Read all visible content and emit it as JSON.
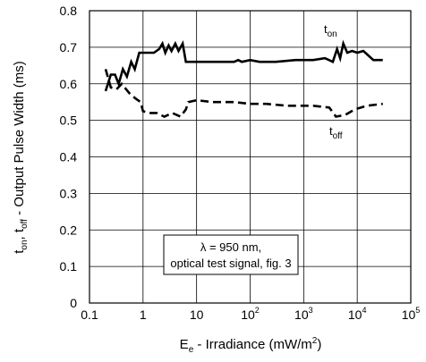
{
  "chart_data": {
    "type": "line",
    "x_scale": "log",
    "xlim": [
      0.1,
      100000
    ],
    "ylim": [
      0,
      0.8
    ],
    "grid": true,
    "xlabel": {
      "main": "E",
      "sub": "e",
      "rest": " - Irradiance (mW/m",
      "sup": "2",
      "end": ")"
    },
    "ylabel": {
      "p1": "t",
      "s1": "on",
      "p2": ", t",
      "s2": "off",
      "p3": " - Output Pulse Width (ms)"
    },
    "x_tick_labels": [
      {
        "base": "0.1",
        "exp": ""
      },
      {
        "base": "1",
        "exp": ""
      },
      {
        "base": "10",
        "exp": ""
      },
      {
        "base": "10",
        "exp": "2"
      },
      {
        "base": "10",
        "exp": "3"
      },
      {
        "base": "10",
        "exp": "4"
      },
      {
        "base": "10",
        "exp": "5"
      }
    ],
    "y_tick_labels": [
      "0",
      "0.1",
      "0.2",
      "0.3",
      "0.4",
      "0.5",
      "0.6",
      "0.7",
      "0.8"
    ],
    "annotation": {
      "line1": "λ = 950 nm,",
      "line2": "optical test signal, fig. 3"
    },
    "series": [
      {
        "label_main": "t",
        "label_sub": "on",
        "style": "solid",
        "points": [
          [
            0.2,
            0.58
          ],
          [
            0.25,
            0.625
          ],
          [
            0.3,
            0.625
          ],
          [
            0.35,
            0.6
          ],
          [
            0.42,
            0.64
          ],
          [
            0.5,
            0.62
          ],
          [
            0.6,
            0.66
          ],
          [
            0.7,
            0.64
          ],
          [
            0.85,
            0.685
          ],
          [
            1.0,
            0.685
          ],
          [
            1.3,
            0.685
          ],
          [
            1.6,
            0.685
          ],
          [
            2.0,
            0.695
          ],
          [
            2.3,
            0.71
          ],
          [
            2.6,
            0.685
          ],
          [
            3.0,
            0.705
          ],
          [
            3.4,
            0.69
          ],
          [
            4.0,
            0.71
          ],
          [
            4.6,
            0.69
          ],
          [
            5.5,
            0.71
          ],
          [
            6.3,
            0.66
          ],
          [
            8,
            0.66
          ],
          [
            12,
            0.66
          ],
          [
            20,
            0.66
          ],
          [
            30,
            0.66
          ],
          [
            50,
            0.66
          ],
          [
            60,
            0.665
          ],
          [
            70,
            0.66
          ],
          [
            100,
            0.665
          ],
          [
            150,
            0.66
          ],
          [
            300,
            0.66
          ],
          [
            700,
            0.665
          ],
          [
            1500,
            0.665
          ],
          [
            2500,
            0.67
          ],
          [
            3500,
            0.66
          ],
          [
            4200,
            0.695
          ],
          [
            4800,
            0.67
          ],
          [
            5500,
            0.71
          ],
          [
            6500,
            0.685
          ],
          [
            8000,
            0.69
          ],
          [
            10000,
            0.685
          ],
          [
            13000,
            0.69
          ],
          [
            20000,
            0.665
          ],
          [
            30000,
            0.665
          ]
        ]
      },
      {
        "label_main": "t",
        "label_sub": "off",
        "style": "dashed",
        "points": [
          [
            0.2,
            0.64
          ],
          [
            0.25,
            0.59
          ],
          [
            0.32,
            0.585
          ],
          [
            0.4,
            0.6
          ],
          [
            0.55,
            0.575
          ],
          [
            0.72,
            0.56
          ],
          [
            0.9,
            0.55
          ],
          [
            1.0,
            0.525
          ],
          [
            1.3,
            0.52
          ],
          [
            1.8,
            0.52
          ],
          [
            2.5,
            0.51
          ],
          [
            3.5,
            0.52
          ],
          [
            5,
            0.51
          ],
          [
            6.3,
            0.53
          ],
          [
            7,
            0.55
          ],
          [
            10,
            0.555
          ],
          [
            20,
            0.55
          ],
          [
            50,
            0.55
          ],
          [
            100,
            0.545
          ],
          [
            200,
            0.545
          ],
          [
            500,
            0.54
          ],
          [
            1500,
            0.54
          ],
          [
            3000,
            0.535
          ],
          [
            4000,
            0.51
          ],
          [
            6000,
            0.515
          ],
          [
            9000,
            0.53
          ],
          [
            15000,
            0.54
          ],
          [
            30000,
            0.545
          ]
        ]
      }
    ]
  }
}
